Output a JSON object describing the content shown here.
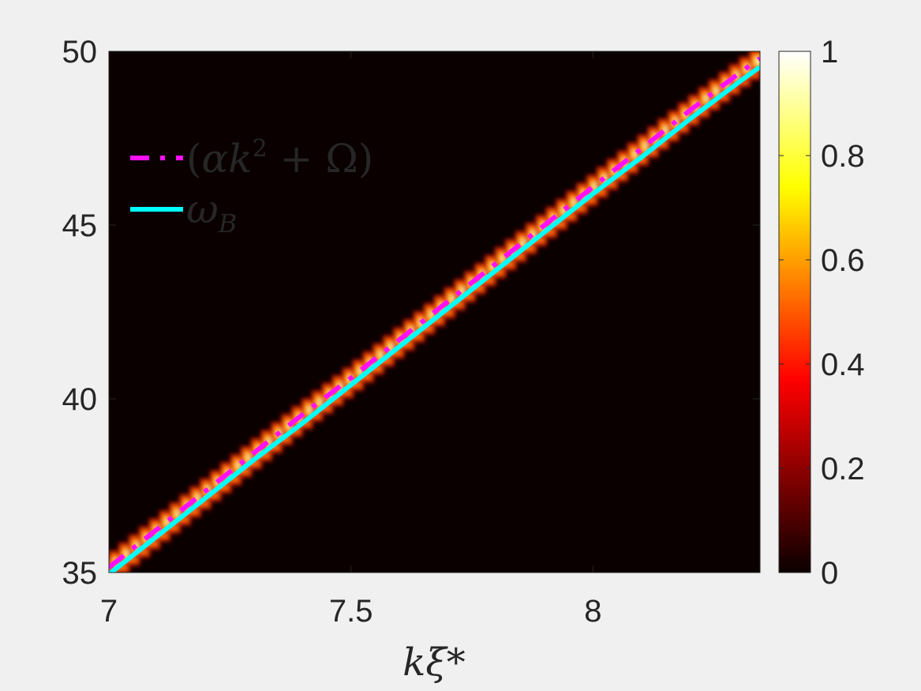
{
  "chart_data": {
    "type": "heatmap",
    "title": "",
    "xlabel": "kξ*",
    "ylabel": "",
    "xlim": [
      7,
      8.345
    ],
    "ylim": [
      35,
      50
    ],
    "x_ticks": [
      {
        "value": 7,
        "label": "7"
      },
      {
        "value": 7.5,
        "label": "7.5"
      },
      {
        "value": 8,
        "label": "8"
      }
    ],
    "y_ticks": [
      {
        "value": 35,
        "label": "35"
      },
      {
        "value": 40,
        "label": "40"
      },
      {
        "value": 45,
        "label": "45"
      },
      {
        "value": 50,
        "label": "50"
      }
    ],
    "colorbar": {
      "range": [
        0,
        1
      ],
      "colormap": "hot",
      "ticks": [
        {
          "value": 0,
          "label": "0"
        },
        {
          "value": 0.2,
          "label": "0.2"
        },
        {
          "value": 0.4,
          "label": "0.4"
        },
        {
          "value": 0.6,
          "label": "0.6"
        },
        {
          "value": 0.8,
          "label": "0.8"
        },
        {
          "value": 1,
          "label": "1"
        }
      ]
    },
    "background_color": "#0a0000",
    "series": [
      {
        "name": "(αk² + Ω)",
        "style": "dashed",
        "color": "#ff10ff",
        "x": [
          7.0,
          7.1,
          7.2,
          7.3,
          7.4,
          7.5,
          7.6,
          7.7,
          7.8,
          7.9,
          8.0,
          8.1,
          8.2,
          8.3,
          8.345
        ],
        "y": [
          35.15,
          36.25,
          37.35,
          38.45,
          39.55,
          40.6,
          41.7,
          42.8,
          43.9,
          45.0,
          46.1,
          47.2,
          48.3,
          49.35,
          49.8
        ]
      },
      {
        "name": "ω_B",
        "style": "solid",
        "color": "#00ffff",
        "x": [
          7.0,
          7.1,
          7.2,
          7.3,
          7.4,
          7.5,
          7.6,
          7.7,
          7.8,
          7.9,
          8.0,
          8.1,
          8.2,
          8.3,
          8.345
        ],
        "y": [
          34.95,
          36.05,
          37.15,
          38.25,
          39.3,
          40.4,
          41.5,
          42.6,
          43.7,
          44.8,
          45.9,
          46.95,
          48.05,
          49.1,
          49.55
        ]
      }
    ],
    "legend": {
      "placement": "top-left",
      "entries": [
        {
          "base": "(αk",
          "sup": "2",
          "rest": " + Ω)"
        },
        {
          "base": "ω",
          "sub": "B"
        }
      ]
    }
  }
}
